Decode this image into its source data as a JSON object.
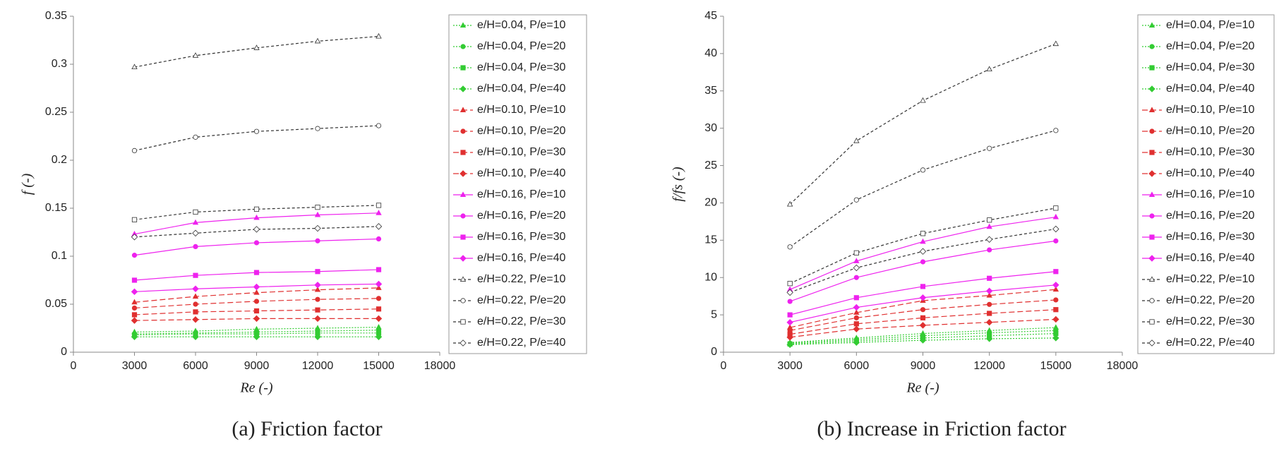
{
  "chart_data": [
    {
      "type": "line",
      "title": "(a) Friction factor",
      "xlabel": "Re (-)",
      "ylabel": "f (-)",
      "x": [
        3000,
        6000,
        9000,
        12000,
        15000
      ],
      "xlim": [
        0,
        18000
      ],
      "xticks": [
        0,
        3000,
        6000,
        9000,
        12000,
        15000,
        18000
      ],
      "ylim": [
        0,
        0.35
      ],
      "yticks": [
        0,
        0.05,
        0.1,
        0.15,
        0.2,
        0.25,
        0.3,
        0.35
      ],
      "grid": false,
      "legend": "right",
      "series": [
        {
          "name": "e/H=0.04, P/e=10",
          "color": "#33cc33",
          "marker_fill": "#33cc33",
          "marker": "triangle",
          "line_style": "dotted",
          "values": [
            0.021,
            0.022,
            0.024,
            0.025,
            0.026
          ]
        },
        {
          "name": "e/H=0.04, P/e=20",
          "color": "#33cc33",
          "marker_fill": "#33cc33",
          "marker": "circle",
          "line_style": "dotted",
          "values": [
            0.019,
            0.02,
            0.021,
            0.022,
            0.023
          ]
        },
        {
          "name": "e/H=0.04, P/e=30",
          "color": "#33cc33",
          "marker_fill": "#33cc33",
          "marker": "square",
          "line_style": "dotted",
          "values": [
            0.018,
            0.019,
            0.019,
            0.02,
            0.02
          ]
        },
        {
          "name": "e/H=0.04, P/e=40",
          "color": "#33cc33",
          "marker_fill": "#33cc33",
          "marker": "diamond",
          "line_style": "dotted",
          "values": [
            0.016,
            0.016,
            0.016,
            0.016,
            0.016
          ]
        },
        {
          "name": "e/H=0.10, P/e=10",
          "color": "#e03030",
          "marker_fill": "#e03030",
          "marker": "triangle",
          "line_style": "dashed",
          "values": [
            0.052,
            0.058,
            0.062,
            0.065,
            0.067
          ]
        },
        {
          "name": "e/H=0.10, P/e=20",
          "color": "#e03030",
          "marker_fill": "#e03030",
          "marker": "circle",
          "line_style": "dashed",
          "values": [
            0.046,
            0.05,
            0.053,
            0.055,
            0.056
          ]
        },
        {
          "name": "e/H=0.10, P/e=30",
          "color": "#e03030",
          "marker_fill": "#e03030",
          "marker": "square",
          "line_style": "dashed",
          "values": [
            0.039,
            0.042,
            0.043,
            0.044,
            0.045
          ]
        },
        {
          "name": "e/H=0.10, P/e=40",
          "color": "#e03030",
          "marker_fill": "#e03030",
          "marker": "diamond",
          "line_style": "dashed",
          "values": [
            0.033,
            0.034,
            0.035,
            0.035,
            0.035
          ]
        },
        {
          "name": "e/H=0.16, P/e=10",
          "color": "#ee22ee",
          "marker_fill": "#ee22ee",
          "marker": "triangle",
          "line_style": "solid",
          "values": [
            0.123,
            0.135,
            0.14,
            0.143,
            0.145
          ]
        },
        {
          "name": "e/H=0.16, P/e=20",
          "color": "#ee22ee",
          "marker_fill": "#ee22ee",
          "marker": "circle",
          "line_style": "solid",
          "values": [
            0.101,
            0.11,
            0.114,
            0.116,
            0.118
          ]
        },
        {
          "name": "e/H=0.16, P/e=30",
          "color": "#ee22ee",
          "marker_fill": "#ee22ee",
          "marker": "square",
          "line_style": "solid",
          "values": [
            0.075,
            0.08,
            0.083,
            0.084,
            0.086
          ]
        },
        {
          "name": "e/H=0.16, P/e=40",
          "color": "#ee22ee",
          "marker_fill": "#ee22ee",
          "marker": "diamond",
          "line_style": "solid",
          "values": [
            0.063,
            0.066,
            0.068,
            0.07,
            0.071
          ]
        },
        {
          "name": "e/H=0.22, P/e=10",
          "color": "#333333",
          "marker_fill": "#ffffff",
          "marker": "triangle",
          "line_style": "short-dashed",
          "values": [
            0.297,
            0.309,
            0.317,
            0.324,
            0.329
          ]
        },
        {
          "name": "e/H=0.22, P/e=20",
          "color": "#333333",
          "marker_fill": "#ffffff",
          "marker": "circle",
          "line_style": "short-dashed",
          "values": [
            0.21,
            0.224,
            0.23,
            0.233,
            0.236
          ]
        },
        {
          "name": "e/H=0.22, P/e=30",
          "color": "#333333",
          "marker_fill": "#ffffff",
          "marker": "square",
          "line_style": "short-dashed",
          "values": [
            0.138,
            0.146,
            0.149,
            0.151,
            0.153
          ]
        },
        {
          "name": "e/H=0.22, P/e=40",
          "color": "#333333",
          "marker_fill": "#ffffff",
          "marker": "diamond",
          "line_style": "short-dashed",
          "values": [
            0.12,
            0.124,
            0.128,
            0.129,
            0.131
          ]
        }
      ]
    },
    {
      "type": "line",
      "title": "(b) Increase in Friction factor",
      "xlabel": "Re (-)",
      "ylabel": "f/fs (-)",
      "x": [
        3000,
        6000,
        9000,
        12000,
        15000
      ],
      "xlim": [
        0,
        18000
      ],
      "xticks": [
        0,
        3000,
        6000,
        9000,
        12000,
        15000,
        18000
      ],
      "ylim": [
        0,
        45
      ],
      "yticks": [
        0,
        5,
        10,
        15,
        20,
        25,
        30,
        35,
        40,
        45
      ],
      "grid": false,
      "legend": "right",
      "series": [
        {
          "name": "e/H=0.04, P/e=10",
          "color": "#33cc33",
          "marker_fill": "#33cc33",
          "marker": "triangle",
          "line_style": "dotted",
          "values": [
            1.3,
            1.9,
            2.5,
            2.9,
            3.3
          ]
        },
        {
          "name": "e/H=0.04, P/e=20",
          "color": "#33cc33",
          "marker_fill": "#33cc33",
          "marker": "circle",
          "line_style": "dotted",
          "values": [
            1.2,
            1.7,
            2.2,
            2.6,
            2.9
          ]
        },
        {
          "name": "e/H=0.04, P/e=30",
          "color": "#33cc33",
          "marker_fill": "#33cc33",
          "marker": "square",
          "line_style": "dotted",
          "values": [
            1.1,
            1.5,
            1.9,
            2.2,
            2.5
          ]
        },
        {
          "name": "e/H=0.04, P/e=40",
          "color": "#33cc33",
          "marker_fill": "#33cc33",
          "marker": "diamond",
          "line_style": "dotted",
          "values": [
            1.0,
            1.3,
            1.6,
            1.8,
            1.9
          ]
        },
        {
          "name": "e/H=0.10, P/e=10",
          "color": "#e03030",
          "marker_fill": "#e03030",
          "marker": "triangle",
          "line_style": "dashed",
          "values": [
            3.3,
            5.3,
            6.9,
            7.6,
            8.4
          ]
        },
        {
          "name": "e/H=0.10, P/e=20",
          "color": "#e03030",
          "marker_fill": "#e03030",
          "marker": "circle",
          "line_style": "dashed",
          "values": [
            2.9,
            4.6,
            5.7,
            6.4,
            7.0
          ]
        },
        {
          "name": "e/H=0.10, P/e=30",
          "color": "#e03030",
          "marker_fill": "#e03030",
          "marker": "square",
          "line_style": "dashed",
          "values": [
            2.4,
            3.8,
            4.6,
            5.2,
            5.7
          ]
        },
        {
          "name": "e/H=0.10, P/e=40",
          "color": "#e03030",
          "marker_fill": "#e03030",
          "marker": "diamond",
          "line_style": "dashed",
          "values": [
            2.0,
            3.1,
            3.6,
            4.0,
            4.4
          ]
        },
        {
          "name": "e/H=0.16, P/e=10",
          "color": "#ee22ee",
          "marker_fill": "#ee22ee",
          "marker": "triangle",
          "line_style": "solid",
          "values": [
            8.4,
            12.2,
            14.8,
            16.8,
            18.1
          ]
        },
        {
          "name": "e/H=0.16, P/e=20",
          "color": "#ee22ee",
          "marker_fill": "#ee22ee",
          "marker": "circle",
          "line_style": "solid",
          "values": [
            6.8,
            10.0,
            12.1,
            13.7,
            14.9
          ]
        },
        {
          "name": "e/H=0.16, P/e=30",
          "color": "#ee22ee",
          "marker_fill": "#ee22ee",
          "marker": "square",
          "line_style": "solid",
          "values": [
            5.0,
            7.3,
            8.8,
            9.9,
            10.8
          ]
        },
        {
          "name": "e/H=0.16, P/e=40",
          "color": "#ee22ee",
          "marker_fill": "#ee22ee",
          "marker": "diamond",
          "line_style": "solid",
          "values": [
            4.0,
            6.0,
            7.3,
            8.2,
            9.0
          ]
        },
        {
          "name": "e/H=0.22, P/e=10",
          "color": "#333333",
          "marker_fill": "#ffffff",
          "marker": "triangle",
          "line_style": "short-dashed",
          "values": [
            19.8,
            28.3,
            33.7,
            37.9,
            41.3
          ]
        },
        {
          "name": "e/H=0.22, P/e=20",
          "color": "#333333",
          "marker_fill": "#ffffff",
          "marker": "circle",
          "line_style": "short-dashed",
          "values": [
            14.1,
            20.4,
            24.4,
            27.3,
            29.7
          ]
        },
        {
          "name": "e/H=0.22, P/e=30",
          "color": "#333333",
          "marker_fill": "#ffffff",
          "marker": "square",
          "line_style": "short-dashed",
          "values": [
            9.2,
            13.3,
            15.9,
            17.7,
            19.3
          ]
        },
        {
          "name": "e/H=0.22, P/e=40",
          "color": "#333333",
          "marker_fill": "#ffffff",
          "marker": "diamond",
          "line_style": "short-dashed",
          "values": [
            8.0,
            11.3,
            13.5,
            15.1,
            16.5
          ]
        }
      ]
    }
  ]
}
